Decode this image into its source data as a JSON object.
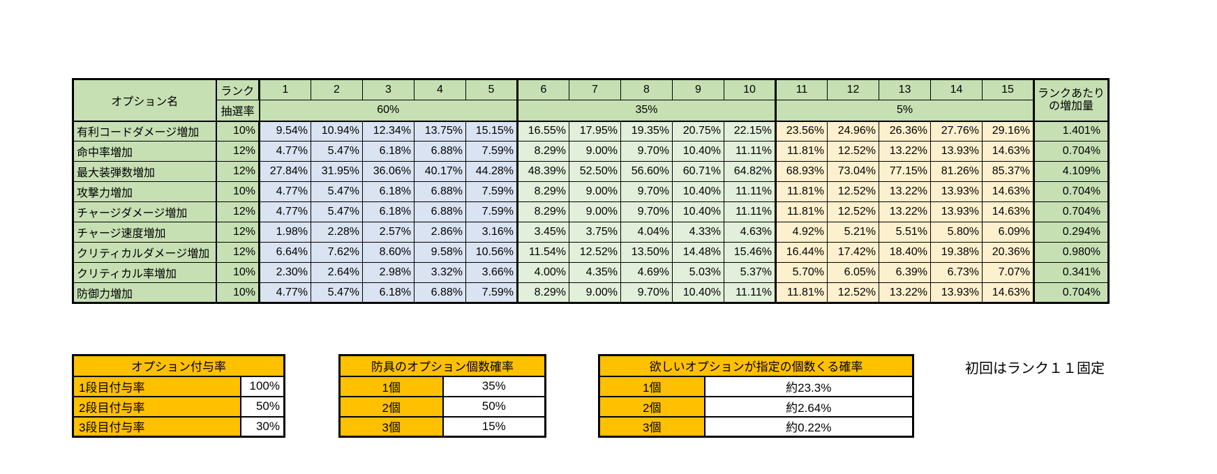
{
  "main_table": {
    "corner_label": "オプション名",
    "rank_label": "ランク",
    "lottery_label": "抽選率",
    "rank_columns": [
      "1",
      "2",
      "3",
      "4",
      "5",
      "6",
      "7",
      "8",
      "9",
      "10",
      "11",
      "12",
      "13",
      "14",
      "15"
    ],
    "groups": [
      {
        "label": "60%",
        "span": 5
      },
      {
        "label": "35%",
        "span": 5
      },
      {
        "label": "5%",
        "span": 5
      }
    ],
    "per_rank_header": [
      "ランクあたり",
      "の増加量"
    ],
    "rows": [
      {
        "name": "有利コードダメージ増加",
        "rate": "10%",
        "values": [
          "9.54%",
          "10.94%",
          "12.34%",
          "13.75%",
          "15.15%",
          "16.55%",
          "17.95%",
          "19.35%",
          "20.75%",
          "22.15%",
          "23.56%",
          "24.96%",
          "26.36%",
          "27.76%",
          "29.16%"
        ],
        "per_rank": "1.401%"
      },
      {
        "name": "命中率増加",
        "rate": "12%",
        "values": [
          "4.77%",
          "5.47%",
          "6.18%",
          "6.88%",
          "7.59%",
          "8.29%",
          "9.00%",
          "9.70%",
          "10.40%",
          "11.11%",
          "11.81%",
          "12.52%",
          "13.22%",
          "13.93%",
          "14.63%"
        ],
        "per_rank": "0.704%"
      },
      {
        "name": "最大装弾数増加",
        "rate": "12%",
        "values": [
          "27.84%",
          "31.95%",
          "36.06%",
          "40.17%",
          "44.28%",
          "48.39%",
          "52.50%",
          "56.60%",
          "60.71%",
          "64.82%",
          "68.93%",
          "73.04%",
          "77.15%",
          "81.26%",
          "85.37%"
        ],
        "per_rank": "4.109%"
      },
      {
        "name": "攻撃力増加",
        "rate": "10%",
        "values": [
          "4.77%",
          "5.47%",
          "6.18%",
          "6.88%",
          "7.59%",
          "8.29%",
          "9.00%",
          "9.70%",
          "10.40%",
          "11.11%",
          "11.81%",
          "12.52%",
          "13.22%",
          "13.93%",
          "14.63%"
        ],
        "per_rank": "0.704%"
      },
      {
        "name": "チャージダメージ増加",
        "rate": "12%",
        "values": [
          "4.77%",
          "5.47%",
          "6.18%",
          "6.88%",
          "7.59%",
          "8.29%",
          "9.00%",
          "9.70%",
          "10.40%",
          "11.11%",
          "11.81%",
          "12.52%",
          "13.22%",
          "13.93%",
          "14.63%"
        ],
        "per_rank": "0.704%"
      },
      {
        "name": "チャージ速度増加",
        "rate": "12%",
        "values": [
          "1.98%",
          "2.28%",
          "2.57%",
          "2.86%",
          "3.16%",
          "3.45%",
          "3.75%",
          "4.04%",
          "4.33%",
          "4.63%",
          "4.92%",
          "5.21%",
          "5.51%",
          "5.80%",
          "6.09%"
        ],
        "per_rank": "0.294%"
      },
      {
        "name": "クリティカルダメージ増加",
        "rate": "12%",
        "values": [
          "6.64%",
          "7.62%",
          "8.60%",
          "9.58%",
          "10.56%",
          "11.54%",
          "12.52%",
          "13.50%",
          "14.48%",
          "15.46%",
          "16.44%",
          "17.42%",
          "18.40%",
          "19.38%",
          "20.36%"
        ],
        "per_rank": "0.980%"
      },
      {
        "name": "クリティカル率増加",
        "rate": "10%",
        "values": [
          "2.30%",
          "2.64%",
          "2.98%",
          "3.32%",
          "3.66%",
          "4.00%",
          "4.35%",
          "4.69%",
          "5.03%",
          "5.37%",
          "5.70%",
          "6.05%",
          "6.39%",
          "6.73%",
          "7.07%"
        ],
        "per_rank": "0.341%"
      },
      {
        "name": "防御力増加",
        "rate": "10%",
        "values": [
          "4.77%",
          "5.47%",
          "6.18%",
          "6.88%",
          "7.59%",
          "8.29%",
          "9.00%",
          "9.70%",
          "10.40%",
          "11.11%",
          "11.81%",
          "12.52%",
          "13.22%",
          "13.93%",
          "14.63%"
        ],
        "per_rank": "0.704%"
      }
    ]
  },
  "grant_table": {
    "title": "オプション付与率",
    "rows": [
      {
        "label": "1段目付与率",
        "value": "100%"
      },
      {
        "label": "2段目付与率",
        "value": "50%"
      },
      {
        "label": "3段目付与率",
        "value": "30%"
      }
    ]
  },
  "count_table": {
    "title": "防具のオプション個数確率",
    "rows": [
      {
        "label": "1個",
        "value": "35%"
      },
      {
        "label": "2個",
        "value": "50%"
      },
      {
        "label": "3個",
        "value": "15%"
      }
    ]
  },
  "desired_table": {
    "title": "欲しいオプションが指定の個数くる確率",
    "rows": [
      {
        "label": "1個",
        "value": "約23.3%"
      },
      {
        "label": "2個",
        "value": "約2.64%"
      },
      {
        "label": "3個",
        "value": "約0.22%"
      }
    ]
  },
  "note": "初回はランク１１固定",
  "colors": {
    "header_green": "#c6e0b4",
    "group1_blue": "#dae3f1",
    "group2_green": "#e2efda",
    "group3_cream": "#fdf0ce",
    "accent_orange": "#ffc000",
    "border": "#000000"
  }
}
